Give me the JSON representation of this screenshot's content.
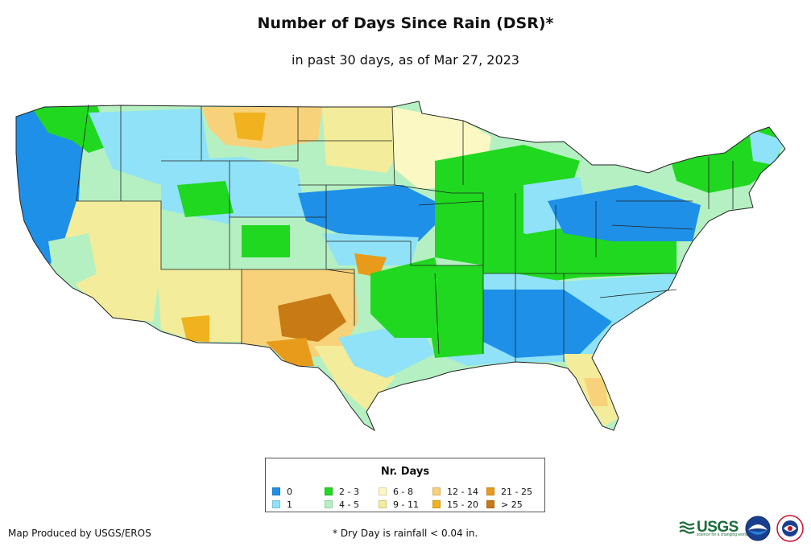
{
  "title": "Number of Days Since Rain (DSR)*",
  "subtitle": "in past 30 days, as of Mar 27, 2023",
  "legend": {
    "title": "Nr. Days",
    "items": [
      {
        "label": "0",
        "color": "#1e90e8"
      },
      {
        "label": "1",
        "color": "#8fe2f7"
      },
      {
        "label": "2 - 3",
        "color": "#1fd81f"
      },
      {
        "label": "4 - 5",
        "color": "#b5f0c2"
      },
      {
        "label": "6 - 8",
        "color": "#fbf8c4"
      },
      {
        "label": "9 - 11",
        "color": "#f3ec9a"
      },
      {
        "label": "12 - 14",
        "color": "#f7d27a"
      },
      {
        "label": "15 - 20",
        "color": "#f0b21e"
      },
      {
        "label": "21 - 25",
        "color": "#e89b1a"
      },
      {
        "label": "> 25",
        "color": "#c87a14"
      }
    ]
  },
  "credit": "Map Produced by USGS/EROS",
  "footnote": "* Dry Day is rainfall < 0.04 in.",
  "logos": {
    "usgs": "USGS",
    "usgs_tagline": "science for a changing world"
  },
  "colors": {
    "state_border": "#222222",
    "water": "#ffffff"
  }
}
